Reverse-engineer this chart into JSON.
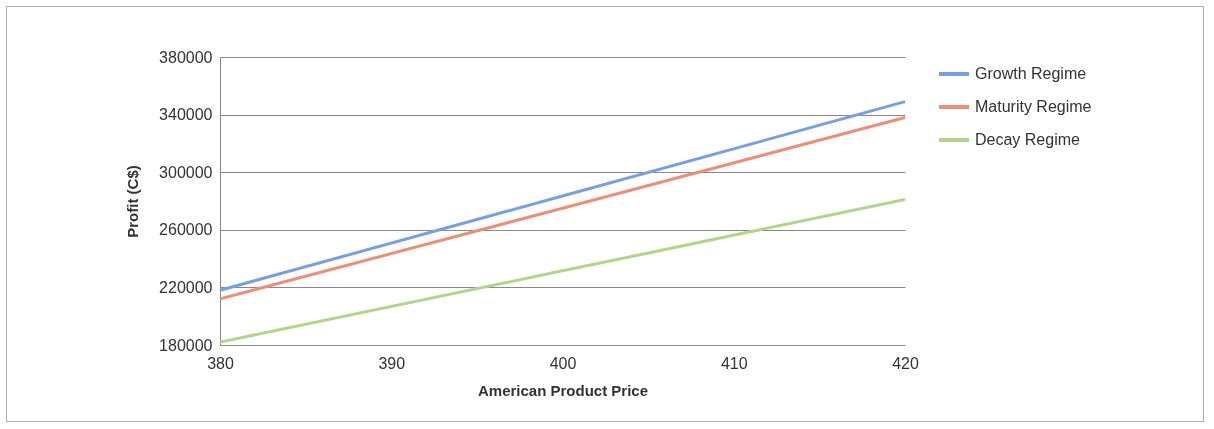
{
  "chart_data": {
    "type": "line",
    "xlabel": "American Product Price",
    "ylabel": "Profit (C$)",
    "x": [
      380,
      400,
      420
    ],
    "series": [
      {
        "name": "Growth Regime",
        "color": "#7a9fe0",
        "values": [
          218000,
          283500,
          349000
        ]
      },
      {
        "name": "Maturity Regime",
        "color": "#e8907a",
        "values": [
          212000,
          275000,
          338000
        ]
      },
      {
        "name": "Decay Regime",
        "color": "#b4d38c",
        "values": [
          182000,
          231500,
          281000
        ]
      }
    ],
    "xlim": [
      380,
      420
    ],
    "xticks": [
      380,
      390,
      400,
      410,
      420
    ],
    "ylim": [
      180000,
      380000
    ],
    "yticks": [
      180000,
      220000,
      260000,
      300000,
      340000,
      380000
    ],
    "grid": "y",
    "legend": "right",
    "marker": "none",
    "line_style": "solid"
  }
}
